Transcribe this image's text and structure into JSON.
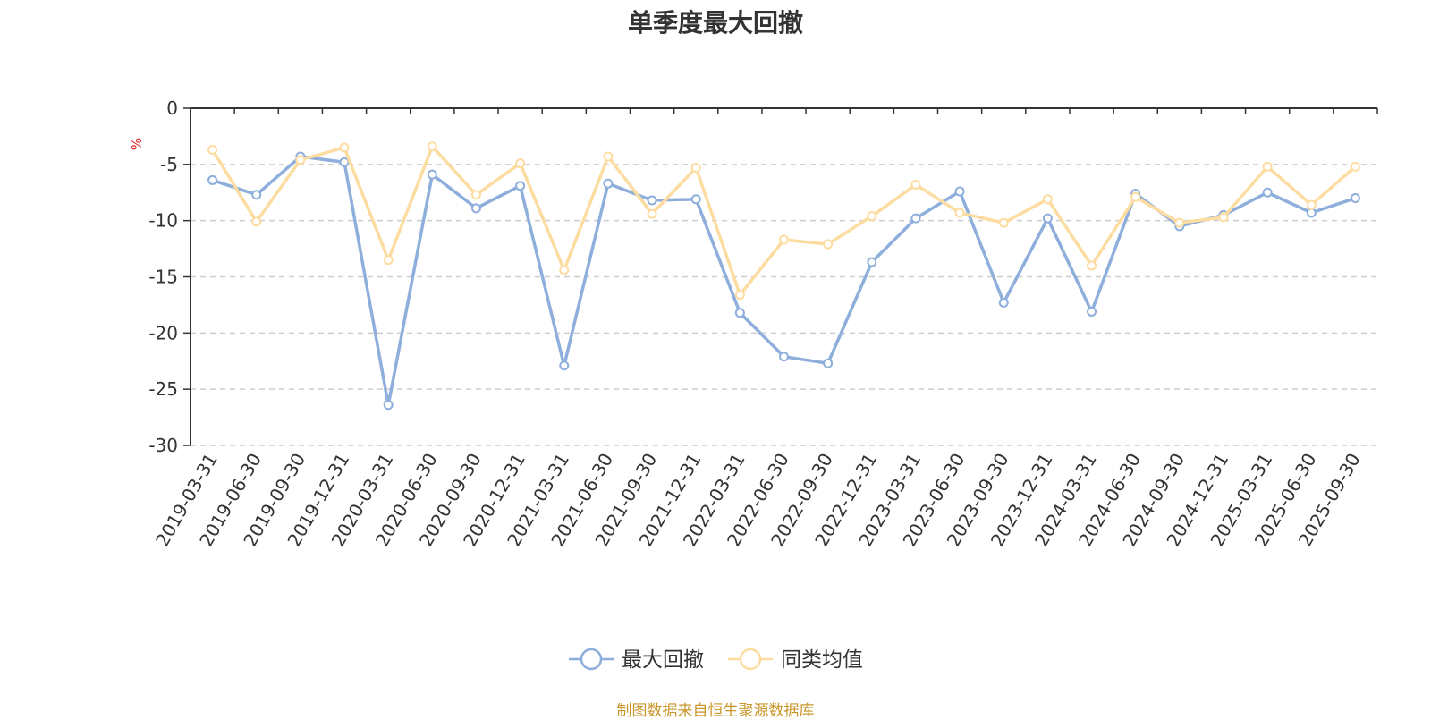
{
  "chart_data": {
    "type": "line",
    "title": "单季度最大回撤",
    "ylabel": "%",
    "xlabel": "",
    "ylim": [
      -30,
      0
    ],
    "yticks": [
      0,
      -5,
      -10,
      -15,
      -20,
      -25,
      -30
    ],
    "categories": [
      "2019-03-31",
      "2019-06-30",
      "2019-09-30",
      "2019-12-31",
      "2020-03-31",
      "2020-06-30",
      "2020-09-30",
      "2020-12-31",
      "2021-03-31",
      "2021-06-30",
      "2021-09-30",
      "2021-12-31",
      "2022-03-31",
      "2022-06-30",
      "2022-09-30",
      "2022-12-31",
      "2023-03-31",
      "2023-06-30",
      "2023-09-30",
      "2023-12-31",
      "2024-03-31",
      "2024-06-30",
      "2024-09-30",
      "2024-12-31",
      "2025-03-31",
      "2025-06-30",
      "2025-09-30"
    ],
    "series": [
      {
        "name": "最大回撤",
        "color": "#8eaedb",
        "values": [
          -6.4,
          -7.7,
          -4.3,
          -4.8,
          -26.4,
          -5.9,
          -8.9,
          -6.9,
          -22.9,
          -6.7,
          -8.2,
          -8.1,
          -18.2,
          -22.1,
          -22.7,
          -13.7,
          -9.8,
          -7.4,
          -17.3,
          -9.8,
          -18.1,
          -7.6,
          -10.5,
          -9.5,
          -7.5,
          -9.3,
          -8.0
        ]
      },
      {
        "name": "同类均值",
        "color": "#fcdca0",
        "values": [
          -3.7,
          -10.1,
          -4.6,
          -3.5,
          -13.5,
          -3.4,
          -7.7,
          -4.9,
          -14.4,
          -4.3,
          -9.4,
          -5.3,
          -16.6,
          -11.7,
          -12.1,
          -9.6,
          -6.8,
          -9.3,
          -10.2,
          -8.1,
          -14.0,
          -7.9,
          -10.2,
          -9.7,
          -5.2,
          -8.6,
          -5.2
        ]
      }
    ],
    "grid": true,
    "legend_position": "bottom"
  },
  "footer": "制图数据来自恒生聚源数据库"
}
